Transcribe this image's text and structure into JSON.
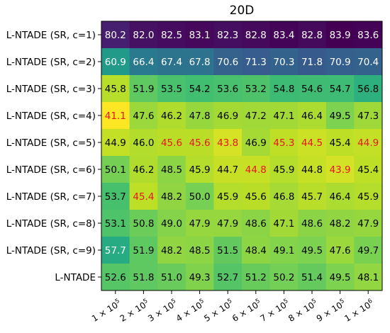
{
  "chart_data": {
    "type": "heatmap",
    "title": "20D",
    "xlabel": "",
    "ylabel": "",
    "grid": false,
    "legend": "none",
    "rows": [
      "L-NTADE (SR, c=1)",
      "L-NTADE (SR, c=2)",
      "L-NTADE (SR, c=3)",
      "L-NTADE (SR, c=4)",
      "L-NTADE (SR, c=5)",
      "L-NTADE (SR, c=6)",
      "L-NTADE (SR, c=7)",
      "L-NTADE (SR, c=8)",
      "L-NTADE (SR, c=9)",
      "L-NTADE"
    ],
    "columns": [
      {
        "mantissa": "1",
        "exponent": "5"
      },
      {
        "mantissa": "2",
        "exponent": "5"
      },
      {
        "mantissa": "3",
        "exponent": "5"
      },
      {
        "mantissa": "4",
        "exponent": "5"
      },
      {
        "mantissa": "5",
        "exponent": "5"
      },
      {
        "mantissa": "6",
        "exponent": "5"
      },
      {
        "mantissa": "7",
        "exponent": "5"
      },
      {
        "mantissa": "8",
        "exponent": "5"
      },
      {
        "mantissa": "9",
        "exponent": "5"
      },
      {
        "mantissa": "1",
        "exponent": "6"
      }
    ],
    "values": [
      [
        80.2,
        82.0,
        82.5,
        83.1,
        82.3,
        82.8,
        83.4,
        82.8,
        83.9,
        83.6
      ],
      [
        60.9,
        66.4,
        67.4,
        67.8,
        70.6,
        71.3,
        70.3,
        71.8,
        70.9,
        70.4
      ],
      [
        45.8,
        51.9,
        53.5,
        54.2,
        53.6,
        53.2,
        54.8,
        54.6,
        54.7,
        56.8
      ],
      [
        41.1,
        47.6,
        46.2,
        47.8,
        46.9,
        47.2,
        47.1,
        46.4,
        49.5,
        47.3
      ],
      [
        44.9,
        46.0,
        45.6,
        45.6,
        43.8,
        46.9,
        45.3,
        44.5,
        45.4,
        44.9
      ],
      [
        50.1,
        46.2,
        48.5,
        45.9,
        44.7,
        44.8,
        45.9,
        44.8,
        43.9,
        45.4
      ],
      [
        53.7,
        45.4,
        48.2,
        50.0,
        45.9,
        45.6,
        46.8,
        45.7,
        46.4,
        45.9
      ],
      [
        53.1,
        50.8,
        49.0,
        47.9,
        47.9,
        48.6,
        47.1,
        48.6,
        48.2,
        47.9
      ],
      [
        57.7,
        51.9,
        48.2,
        48.5,
        51.5,
        48.4,
        49.1,
        49.5,
        47.6,
        49.7
      ],
      [
        52.6,
        51.8,
        51.0,
        49.3,
        52.7,
        51.2,
        50.2,
        51.4,
        49.5,
        48.1
      ]
    ],
    "highlighted": [
      [
        3,
        0
      ],
      [
        4,
        2
      ],
      [
        4,
        3
      ],
      [
        4,
        4
      ],
      [
        4,
        6
      ],
      [
        4,
        7
      ],
      [
        4,
        9
      ],
      [
        5,
        5
      ],
      [
        5,
        8
      ],
      [
        6,
        1
      ]
    ],
    "colormap": "viridis_r",
    "color_range": [
      41.1,
      83.9
    ],
    "value_format": "0.0",
    "colors": {
      "highlight_text": "#e8151b",
      "light_text": "#ffffff",
      "dark_text": "#000000"
    }
  }
}
